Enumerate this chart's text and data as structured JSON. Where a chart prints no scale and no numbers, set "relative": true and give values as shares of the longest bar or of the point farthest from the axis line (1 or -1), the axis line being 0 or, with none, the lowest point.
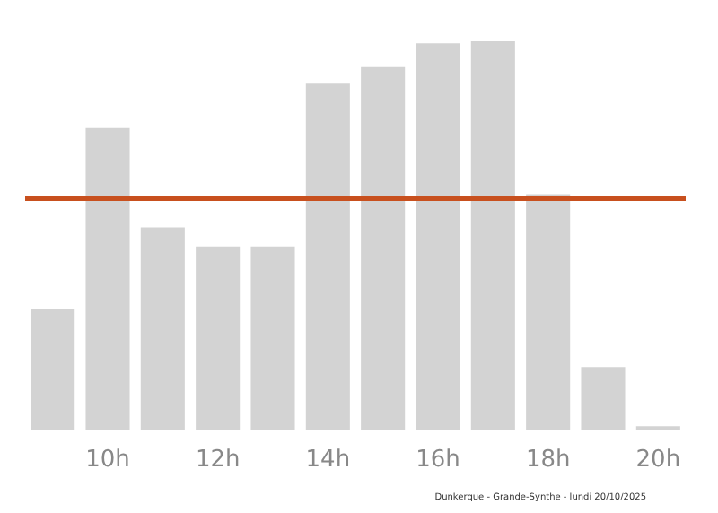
{
  "chart_data": {
    "type": "bar",
    "relative": true,
    "categories": [
      null,
      "10h",
      null,
      "12h",
      null,
      "14h",
      null,
      "16h",
      null,
      "18h",
      null,
      "20h"
    ],
    "values": [
      0.313,
      0.777,
      0.522,
      0.473,
      0.473,
      0.891,
      0.934,
      0.995,
      1,
      0.607,
      0.163,
      0.011
    ],
    "color": "#d3d3d3",
    "ref_lines": [
      {
        "axis": "y",
        "value": 0.599,
        "color": "#c8501e",
        "line_style": "solid"
      }
    ],
    "annotations": [
      "Dunkerque - Grande-Synthe - lundi 20/10/2025"
    ]
  }
}
